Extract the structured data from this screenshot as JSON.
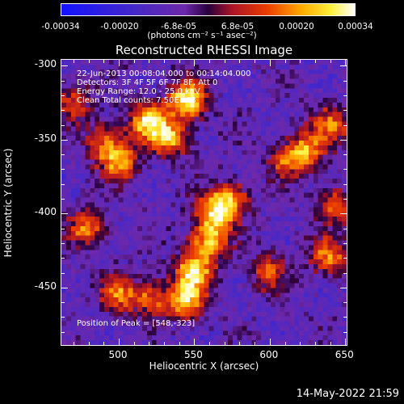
{
  "colorbar": {
    "ticks": [
      "-0.00034",
      "-0.00020",
      "-6.8e-05",
      "6.8e-05",
      "0.00020",
      "0.00034"
    ],
    "units_label": "(photons cm⁻² s⁻¹ asec⁻²)",
    "range": [
      -0.00034,
      0.00034
    ]
  },
  "annotations": {
    "line1": "22-Jun-2013 00:08:04.000 to 00:14:04.000",
    "line2": "Detectors: 3F 4F 5F 6F 7F 8F, Att 0",
    "line3": "Energy Range: 12.0 - 25.0 keV",
    "line4": "Clean    Total counts: 7.50E+03",
    "peak": "Position of Peak = [548,-323]"
  },
  "footer": {
    "date": "14-May-2022 21:59"
  },
  "colors": {
    "background": "#000000",
    "frame": "#ffffff",
    "text": "#ffffff"
  },
  "chart_data": {
    "type": "heatmap",
    "title": "Reconstructed RHESSI Image",
    "xlabel": "Heliocentric X (arcsec)",
    "ylabel": "Heliocentric Y (arcsec)",
    "xlim": [
      462,
      652
    ],
    "ylim": [
      -490,
      -296
    ],
    "x_ticks": [
      "500",
      "550",
      "600",
      "650"
    ],
    "y_ticks": [
      "-300",
      "-350",
      "-400",
      "-450"
    ],
    "colormap": "blue-purple-red-yellow-white",
    "grid": false,
    "peak": [
      548,
      -323
    ],
    "sources": [
      {
        "x": 546,
        "y": -323,
        "intensity": 1.0
      },
      {
        "x": 520,
        "y": -338,
        "intensity": 0.85
      },
      {
        "x": 535,
        "y": -350,
        "intensity": 0.7
      },
      {
        "x": 500,
        "y": -365,
        "intensity": 0.75
      },
      {
        "x": 490,
        "y": -350,
        "intensity": 0.55
      },
      {
        "x": 565,
        "y": -400,
        "intensity": 0.85
      },
      {
        "x": 560,
        "y": -420,
        "intensity": 0.8
      },
      {
        "x": 550,
        "y": -440,
        "intensity": 0.85
      },
      {
        "x": 545,
        "y": -460,
        "intensity": 0.8
      },
      {
        "x": 575,
        "y": -390,
        "intensity": 0.6
      },
      {
        "x": 480,
        "y": -410,
        "intensity": 0.65
      },
      {
        "x": 500,
        "y": -455,
        "intensity": 0.6
      },
      {
        "x": 522,
        "y": -458,
        "intensity": 0.55
      },
      {
        "x": 625,
        "y": -358,
        "intensity": 0.7
      },
      {
        "x": 642,
        "y": -340,
        "intensity": 0.6
      },
      {
        "x": 640,
        "y": -430,
        "intensity": 0.65
      },
      {
        "x": 645,
        "y": -395,
        "intensity": 0.55
      },
      {
        "x": 600,
        "y": -440,
        "intensity": 0.5
      },
      {
        "x": 610,
        "y": -365,
        "intensity": 0.45
      },
      {
        "x": 470,
        "y": -325,
        "intensity": 0.5
      }
    ]
  }
}
